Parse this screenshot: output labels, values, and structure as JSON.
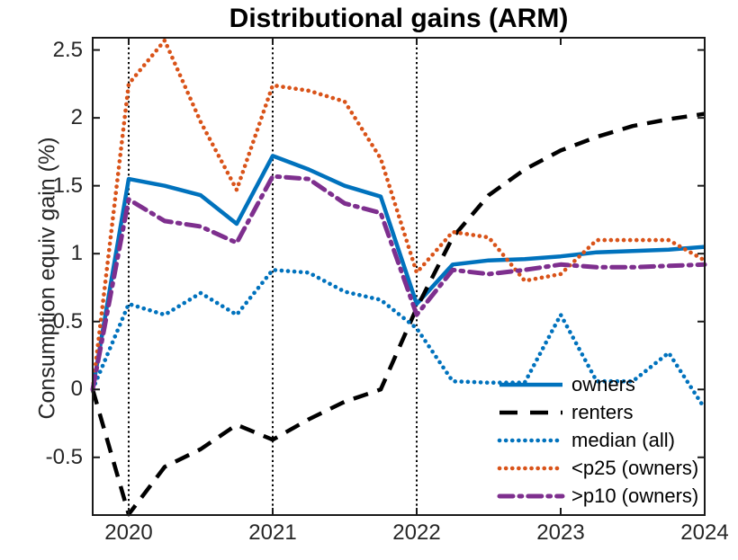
{
  "title": "Distributional gains (ARM)",
  "chart_data": {
    "type": "line",
    "title": "Distributional gains (ARM)",
    "xlabel": "",
    "ylabel": "Consumption equiv gain (%)",
    "xlim": [
      2019.75,
      2024.0
    ],
    "ylim": [
      -0.925,
      2.59
    ],
    "xticks": [
      2020,
      2021,
      2022,
      2023,
      2024
    ],
    "xtick_labels": [
      "2020",
      "2021",
      "2022",
      "2023",
      "2024"
    ],
    "yticks": [
      -0.5,
      0,
      0.5,
      1,
      1.5,
      2,
      2.5
    ],
    "ytick_labels": [
      "-0.5",
      "0",
      "0.5",
      "1",
      "1.5",
      "2",
      "2.5"
    ],
    "grid": false,
    "vlines": [
      2020,
      2021,
      2022
    ],
    "vline_style": "dotted",
    "vline_color": "#000000",
    "legend_position": "inside lower right, no box",
    "axis_color": "#1a1a1a",
    "x": [
      2019.75,
      2020.0,
      2020.25,
      2020.5,
      2020.75,
      2021.0,
      2021.25,
      2021.5,
      2021.75,
      2022.0,
      2022.25,
      2022.5,
      2022.75,
      2023.0,
      2023.25,
      2023.5,
      2023.75,
      2024.0
    ],
    "series": [
      {
        "name": "owners",
        "color": "#0072BD",
        "style": "solid",
        "width": 4.5,
        "values": [
          0,
          1.55,
          1.5,
          1.43,
          1.22,
          1.72,
          1.62,
          1.5,
          1.42,
          0.63,
          0.92,
          0.95,
          0.96,
          0.98,
          1.01,
          1.02,
          1.03,
          1.05
        ]
      },
      {
        "name": "renters",
        "color": "#000000",
        "style": "dashed",
        "width": 4.5,
        "values": [
          0,
          -0.92,
          -0.57,
          -0.44,
          -0.26,
          -0.37,
          -0.22,
          -0.09,
          0.0,
          0.6,
          1.12,
          1.43,
          1.62,
          1.76,
          1.86,
          1.94,
          1.99,
          2.03
        ]
      },
      {
        "name": "median (all)",
        "color": "#0072BD",
        "style": "dotted",
        "width": 4.6,
        "values": [
          0,
          0.63,
          0.55,
          0.71,
          0.55,
          0.88,
          0.86,
          0.72,
          0.66,
          0.45,
          0.06,
          0.05,
          0.05,
          0.55,
          0.06,
          0.06,
          0.27,
          -0.14
        ]
      },
      {
        "name": "<p25 (owners)",
        "color": "#D95319",
        "style": "dotted",
        "width": 4.6,
        "values": [
          0,
          2.25,
          2.57,
          1.97,
          1.47,
          2.24,
          2.2,
          2.12,
          1.7,
          0.86,
          1.16,
          1.12,
          0.8,
          0.85,
          1.1,
          1.1,
          1.1,
          0.95
        ]
      },
      {
        "name": ">p10 (owners)",
        "color": "#7E2F8E",
        "style": "dashdot",
        "width": 5,
        "values": [
          0,
          1.4,
          1.24,
          1.2,
          1.08,
          1.57,
          1.55,
          1.37,
          1.3,
          0.55,
          0.88,
          0.85,
          0.88,
          0.92,
          0.9,
          0.9,
          0.91,
          0.92
        ]
      }
    ]
  }
}
